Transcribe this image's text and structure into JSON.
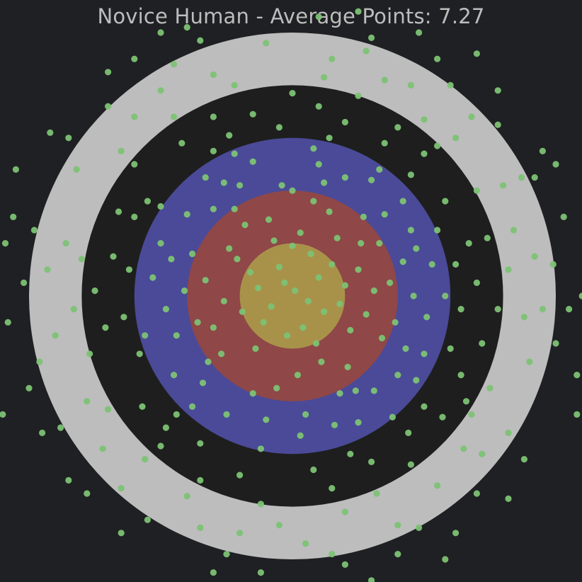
{
  "chart_data": {
    "type": "scatter",
    "title": "Novice Human - Average Points: 7.27",
    "xlabel": "",
    "ylabel": "",
    "grid": false,
    "axes_visible": false,
    "xlim": [
      -1.1,
      1.1
    ],
    "ylim": [
      -1.1,
      1.1
    ],
    "background_color": "#1f2023",
    "target_rings": [
      {
        "name": "ring-outer",
        "radius": 1.0,
        "color": "#bdbdbd"
      },
      {
        "name": "ring-black",
        "radius": 0.8,
        "color": "#1e1e1e"
      },
      {
        "name": "ring-blue",
        "radius": 0.6,
        "color": "#4a4a98"
      },
      {
        "name": "ring-red",
        "radius": 0.4,
        "color": "#8f4747"
      },
      {
        "name": "ring-bullseye",
        "radius": 0.2,
        "color": "#a8924a"
      }
    ],
    "series": [
      {
        "color": "#7cc274",
        "points": [
          [
            0.01,
            0.02
          ],
          [
            -0.03,
            0.05
          ],
          [
            0.06,
            -0.02
          ],
          [
            -0.08,
            -0.04
          ],
          [
            0.1,
            0.07
          ],
          [
            -0.05,
            0.11
          ],
          [
            0.12,
            -0.06
          ],
          [
            -0.13,
            0.03
          ],
          [
            0.04,
            -0.12
          ],
          [
            -0.02,
            -0.15
          ],
          [
            0.15,
            0.12
          ],
          [
            -0.11,
            -0.1
          ],
          [
            0.07,
            0.16
          ],
          [
            -0.16,
            0.09
          ],
          [
            0.18,
            -0.03
          ],
          [
            0.0,
            0.19
          ],
          [
            -0.19,
            -0.06
          ],
          [
            0.09,
            -0.18
          ],
          [
            0.2,
            0.04
          ],
          [
            -0.07,
            0.21
          ],
          [
            0.22,
            -0.13
          ],
          [
            -0.21,
            0.14
          ],
          [
            0.03,
            0.24
          ],
          [
            -0.14,
            -0.2
          ],
          [
            0.25,
            0.1
          ],
          [
            -0.26,
            -0.02
          ],
          [
            0.11,
            -0.25
          ],
          [
            0.17,
            0.22
          ],
          [
            -0.24,
            0.18
          ],
          [
            0.28,
            -0.07
          ],
          [
            -0.09,
            0.29
          ],
          [
            0.02,
            -0.3
          ],
          [
            -0.3,
            -0.12
          ],
          [
            0.26,
            0.2
          ],
          [
            0.31,
            0.02
          ],
          [
            -0.18,
            0.27
          ],
          [
            0.14,
            0.32
          ],
          [
            -0.33,
            0.06
          ],
          [
            0.21,
            -0.27
          ],
          [
            -0.27,
            -0.22
          ],
          [
            0.34,
            -0.16
          ],
          [
            -0.06,
            -0.35
          ],
          [
            0.08,
            0.36
          ],
          [
            -0.36,
            -0.1
          ],
          [
            0.33,
            0.2
          ],
          [
            -0.22,
            0.33
          ],
          [
            0.37,
            0.05
          ],
          [
            -0.38,
            0.16
          ],
          [
            0.18,
            -0.37
          ],
          [
            -0.15,
            -0.37
          ],
          [
            0.27,
            0.3
          ],
          [
            0.39,
            -0.1
          ],
          [
            -0.32,
            -0.25
          ],
          [
            0.0,
            0.4
          ],
          [
            -0.04,
            0.42
          ],
          [
            0.42,
            0.13
          ],
          [
            -0.41,
            0.02
          ],
          [
            0.24,
            -0.36
          ],
          [
            -0.3,
            0.33
          ],
          [
            0.12,
            0.43
          ],
          [
            0.43,
            -0.2
          ],
          [
            -0.44,
            -0.15
          ],
          [
            0.05,
            -0.45
          ],
          [
            0.35,
            0.31
          ],
          [
            -0.2,
            0.42
          ],
          [
            0.46,
            0.0
          ],
          [
            -0.34,
            -0.33
          ],
          [
            0.31,
            -0.36
          ],
          [
            -0.46,
            0.14
          ],
          [
            0.2,
            0.45
          ],
          [
            -0.1,
            -0.47
          ],
          [
            0.47,
            0.18
          ],
          [
            -0.26,
            0.43
          ],
          [
            0.4,
            -0.3
          ],
          [
            -0.48,
            -0.05
          ],
          [
            0.1,
            0.5
          ],
          [
            -0.4,
            0.31
          ],
          [
            0.45,
            0.25
          ],
          [
            0.16,
            -0.49
          ],
          [
            -0.25,
            -0.45
          ],
          [
            0.51,
            -0.08
          ],
          [
            -0.5,
            0.2
          ],
          [
            0.3,
            0.44
          ],
          [
            -0.15,
            0.51
          ],
          [
            0.5,
            -0.22
          ],
          [
            -0.45,
            -0.3
          ],
          [
            0.03,
            -0.53
          ],
          [
            0.42,
            0.36
          ],
          [
            -0.53,
            0.07
          ],
          [
            0.25,
            -0.48
          ],
          [
            -0.33,
            0.45
          ],
          [
            0.53,
            0.12
          ],
          [
            -0.38,
            -0.42
          ],
          [
            0.08,
            0.56
          ],
          [
            0.47,
            -0.32
          ],
          [
            -0.56,
            -0.15
          ],
          [
            0.33,
            0.48
          ],
          [
            -0.22,
            0.54
          ],
          [
            0.58,
            0.0
          ],
          [
            -0.12,
            -0.58
          ],
          [
            0.38,
            -0.46
          ],
          [
            -0.5,
            0.34
          ],
          [
            0.55,
            0.25
          ],
          [
            -0.58,
            -0.22
          ],
          [
            0.14,
            0.6
          ],
          [
            -0.44,
            -0.45
          ],
          [
            0.6,
            -0.2
          ],
          [
            -0.3,
            0.55
          ],
          [
            0.45,
            0.46
          ],
          [
            0.22,
            -0.6
          ],
          [
            -0.62,
            0.1
          ],
          [
            0.62,
            0.12
          ],
          [
            -0.05,
            0.64
          ],
          [
            -0.55,
            0.36
          ],
          [
            0.5,
            -0.42
          ],
          [
            -0.35,
            -0.56
          ],
          [
            0.64,
            -0.05
          ],
          [
            -0.24,
            0.61
          ],
          [
            0.35,
            0.58
          ],
          [
            -0.64,
            -0.08
          ],
          [
            0.08,
            -0.66
          ],
          [
            0.58,
            0.36
          ],
          [
            -0.6,
            0.3
          ],
          [
            0.44,
            -0.52
          ],
          [
            -0.48,
            -0.5
          ],
          [
            0.2,
            0.66
          ],
          [
            0.67,
            0.2
          ],
          [
            -0.68,
            0.15
          ],
          [
            0.3,
            -0.63
          ],
          [
            -0.15,
            0.69
          ],
          [
            0.64,
            -0.3
          ],
          [
            -0.57,
            -0.42
          ],
          [
            0.5,
            0.54
          ],
          [
            -0.2,
            -0.68
          ],
          [
            0.7,
            0.05
          ],
          [
            -0.42,
            0.58
          ],
          [
            0.1,
            0.72
          ],
          [
            0.57,
            -0.46
          ],
          [
            -0.71,
            -0.12
          ],
          [
            0.72,
            -0.18
          ],
          [
            -0.3,
            0.68
          ],
          [
            0.4,
            0.64
          ],
          [
            -0.66,
            0.32
          ],
          [
            0.15,
            -0.73
          ],
          [
            -0.5,
            -0.57
          ],
          [
            0.74,
            0.22
          ],
          [
            0.66,
            -0.4
          ],
          [
            -0.75,
            0.02
          ],
          [
            0.0,
            0.77
          ],
          [
            -0.35,
            -0.7
          ],
          [
            0.45,
            -0.64
          ],
          [
            0.55,
            0.57
          ],
          [
            -0.6,
            0.5
          ],
          [
            0.78,
            -0.05
          ],
          [
            -0.77,
            -0.22
          ],
          [
            0.25,
            0.76
          ],
          [
            -0.12,
            -0.79
          ],
          [
            0.7,
            0.4
          ],
          [
            -0.45,
            0.68
          ],
          [
            0.68,
            -0.45
          ],
          [
            -0.7,
            -0.43
          ],
          [
            0.32,
            -0.75
          ],
          [
            -0.8,
            0.14
          ],
          [
            0.82,
            0.1
          ],
          [
            -0.22,
            0.8
          ],
          [
            0.5,
            0.67
          ],
          [
            -0.56,
            -0.62
          ],
          [
            0.12,
            0.83
          ],
          [
            -0.83,
            -0.05
          ],
          [
            0.75,
            -0.35
          ],
          [
            0.2,
            -0.82
          ],
          [
            -0.65,
            0.55
          ],
          [
            0.84,
            0.25
          ],
          [
            -0.4,
            -0.76
          ],
          [
            0.62,
            0.6
          ],
          [
            0.65,
            -0.58
          ],
          [
            -0.86,
            0.2
          ],
          [
            -0.05,
            -0.87
          ],
          [
            0.35,
            0.82
          ],
          [
            -0.3,
            0.84
          ],
          [
            0.88,
            -0.08
          ],
          [
            -0.78,
            -0.4
          ],
          [
            0.55,
            -0.72
          ],
          [
            -0.6,
            0.68
          ],
          [
            0.8,
            0.42
          ],
          [
            -0.9,
            -0.15
          ],
          [
            0.15,
            0.9
          ],
          [
            -0.2,
            -0.9
          ],
          [
            0.9,
            -0.25
          ],
          [
            -0.5,
            0.78
          ],
          [
            0.45,
            0.8
          ],
          [
            0.72,
            -0.6
          ],
          [
            -0.72,
            -0.58
          ],
          [
            0.92,
            0.15
          ],
          [
            -0.93,
            0.1
          ],
          [
            0.05,
            -0.94
          ],
          [
            -0.35,
            -0.88
          ],
          [
            0.68,
            0.68
          ],
          [
            0.4,
            -0.87
          ],
          [
            -0.82,
            0.48
          ],
          [
            0.95,
            -0.05
          ],
          [
            -0.1,
            0.96
          ],
          [
            0.28,
            0.93
          ],
          [
            -0.65,
            -0.73
          ],
          [
            0.82,
            -0.52
          ],
          [
            -0.96,
            -0.25
          ],
          [
            0.87,
            0.45
          ],
          [
            -0.45,
            0.88
          ],
          [
            0.6,
            0.8
          ],
          [
            0.15,
            -0.98
          ],
          [
            -0.98,
            0.25
          ],
          [
            0.99,
            0.12
          ],
          [
            -0.7,
            0.72
          ],
          [
            0.48,
            -0.88
          ],
          [
            -0.25,
            -0.98
          ],
          [
            0.78,
            0.65
          ],
          [
            -0.88,
            -0.5
          ],
          [
            1.0,
            -0.18
          ],
          [
            0.3,
            0.98
          ],
          [
            -0.55,
            -0.85
          ],
          [
            0.7,
            -0.75
          ],
          [
            -1.02,
            0.05
          ],
          [
            -0.35,
            0.97
          ],
          [
            0.92,
            0.45
          ],
          [
            -1.0,
            -0.35
          ],
          [
            0.2,
            -1.02
          ],
          [
            -0.85,
            0.6
          ],
          [
            1.03,
            0.3
          ],
          [
            0.55,
            0.9
          ],
          [
            -0.6,
            0.9
          ],
          [
            0.88,
            -0.62
          ],
          [
            -0.12,
            -1.05
          ],
          [
            1.05,
            -0.05
          ],
          [
            -1.06,
            0.3
          ],
          [
            0.4,
            -0.98
          ],
          [
            -0.78,
            -0.75
          ],
          [
            0.1,
            1.06
          ],
          [
            -0.4,
            1.02
          ],
          [
            0.78,
            0.78
          ],
          [
            1.08,
            -0.3
          ],
          [
            -0.95,
            -0.52
          ],
          [
            0.62,
            -0.9
          ],
          [
            -1.08,
            -0.1
          ],
          [
            -0.7,
            0.85
          ],
          [
            0.95,
            0.55
          ],
          [
            1.1,
            0.0
          ],
          [
            -0.3,
            -1.05
          ],
          [
            0.48,
            1.0
          ],
          [
            -1.05,
            0.48
          ],
          [
            0.82,
            -0.77
          ],
          [
            -0.85,
            -0.7
          ],
          [
            0.25,
            1.08
          ],
          [
            -1.1,
            -0.45
          ],
          [
            1.0,
            0.5
          ],
          [
            0.3,
            -1.08
          ],
          [
            -0.5,
            1.0
          ],
          [
            1.08,
            -0.45
          ],
          [
            -0.65,
            -0.9
          ],
          [
            0.7,
            0.92
          ],
          [
            -1.09,
            0.2
          ],
          [
            0.58,
            -1.0
          ],
          [
            -0.92,
            0.62
          ]
        ]
      }
    ]
  }
}
